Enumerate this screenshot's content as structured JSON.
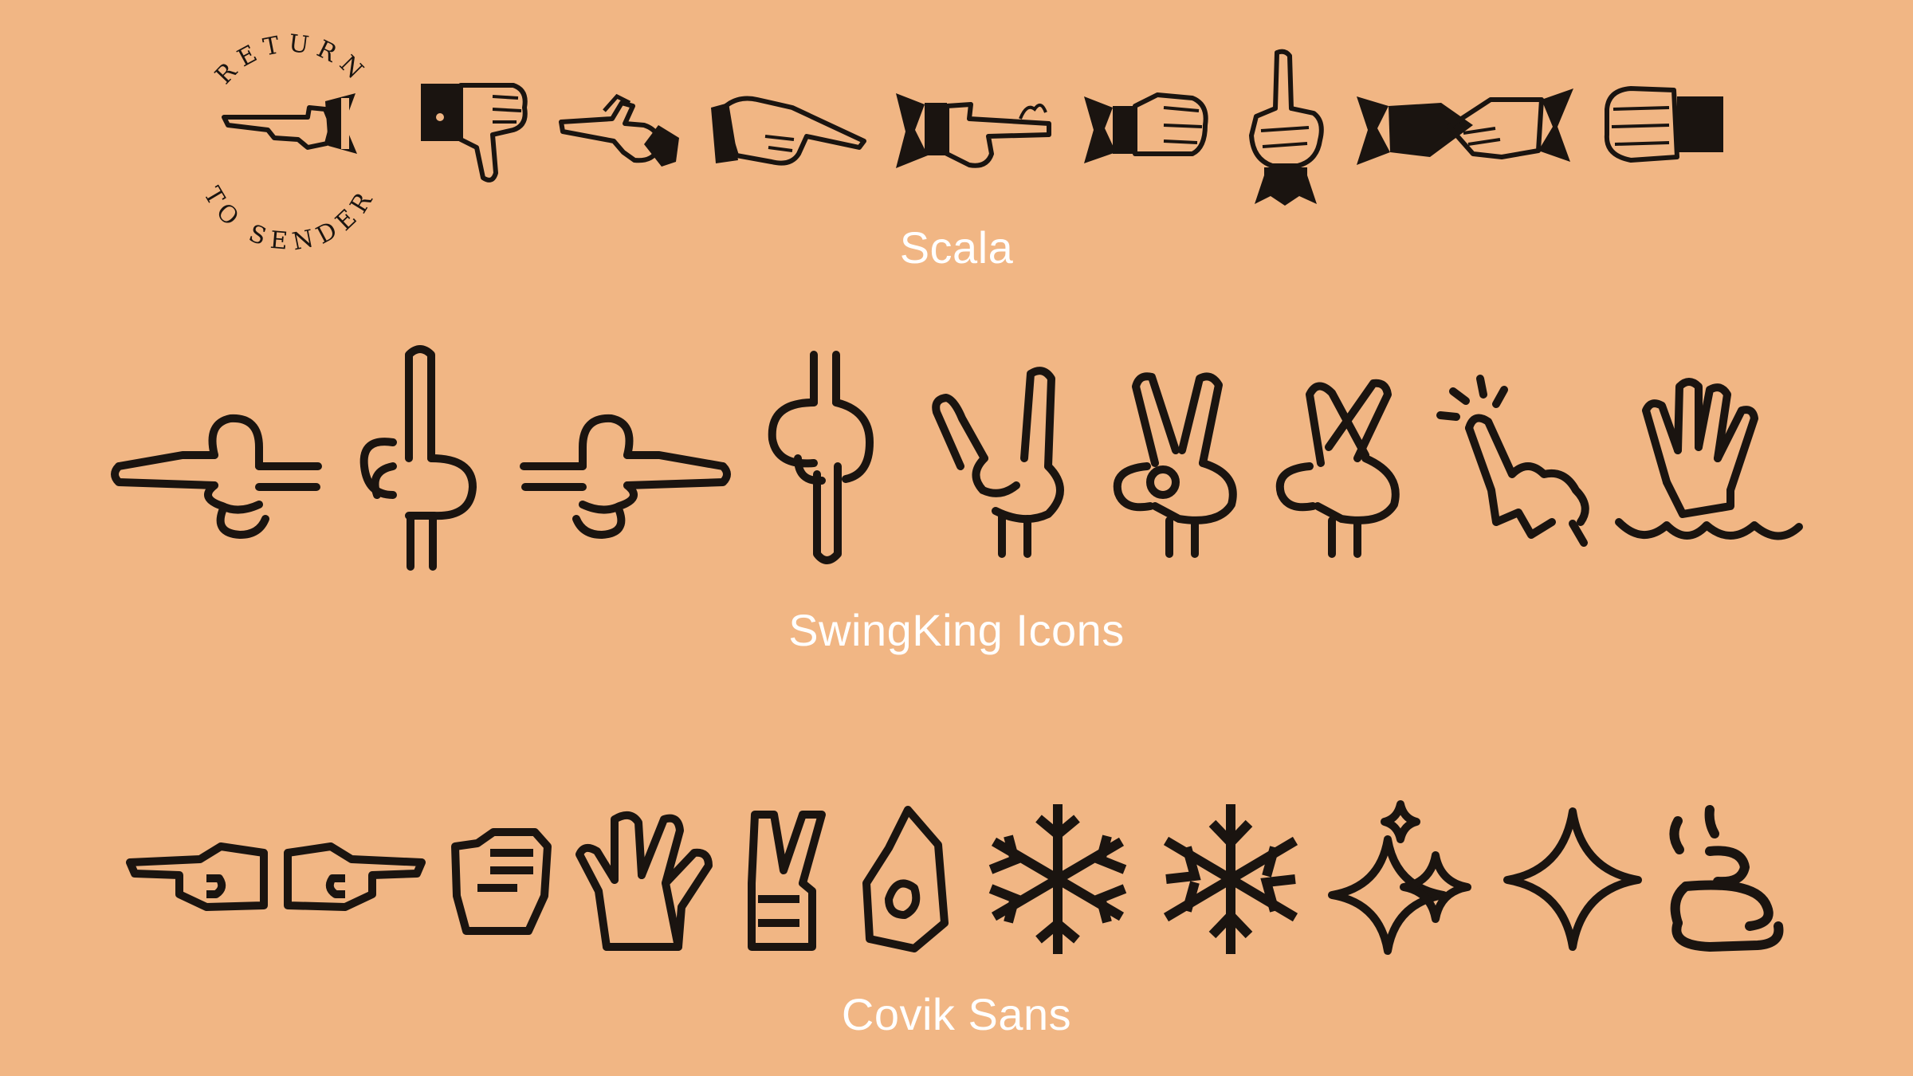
{
  "sections": [
    {
      "name": "Scala",
      "stamp_top": "RETURN",
      "stamp_bottom": "TO SENDER",
      "icons": [
        "return-to-sender-icon",
        "thumbs-down-icon",
        "pointing-hand-icon",
        "hand-pointing-right-icon",
        "finger-string-icon",
        "fist-icon",
        "index-finger-up-icon",
        "handshake-icon",
        "knuckle-fist-icon"
      ]
    },
    {
      "name": "SwingKing Icons",
      "icons": [
        "point-left-icon",
        "point-up-icon",
        "point-right-icon",
        "point-down-icon",
        "rock-on-icon",
        "peace-sign-icon",
        "crossed-fingers-icon",
        "tap-icon",
        "wave-hand-icon"
      ]
    },
    {
      "name": "Covik Sans",
      "icons": [
        "point-left-icon",
        "point-right-icon",
        "raised-fist-icon",
        "vulcan-salute-icon",
        "victory-hand-icon",
        "ok-hand-icon",
        "snowflake-icon",
        "snowflake-alt-icon",
        "sparkles-icon",
        "four-point-star-icon",
        "swirl-pile-icon"
      ]
    }
  ],
  "colors": {
    "background": "#f1b684",
    "ink": "#1a1410",
    "label": "#ffffff"
  }
}
